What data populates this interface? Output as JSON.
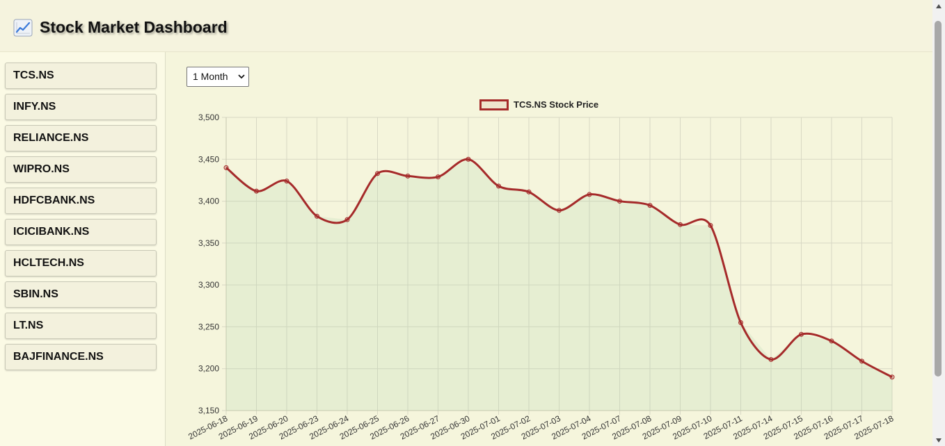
{
  "header": {
    "title": "Stock Market Dashboard",
    "logo_icon": "chart-increasing-icon"
  },
  "sidebar": {
    "items": [
      {
        "label": "TCS.NS"
      },
      {
        "label": "INFY.NS"
      },
      {
        "label": "RELIANCE.NS"
      },
      {
        "label": "WIPRO.NS"
      },
      {
        "label": "HDFCBANK.NS"
      },
      {
        "label": "ICICIBANK.NS"
      },
      {
        "label": "HCLTECH.NS"
      },
      {
        "label": "SBIN.NS"
      },
      {
        "label": "LT.NS"
      },
      {
        "label": "BAJFINANCE.NS"
      }
    ]
  },
  "controls": {
    "range_selected": "1 Month"
  },
  "colors": {
    "line": "#a52a2a",
    "fill": "#e6eedc",
    "background": "#f5f5dc"
  },
  "chart_data": {
    "type": "line",
    "x": [
      "2025-06-18",
      "2025-06-19",
      "2025-06-20",
      "2025-06-23",
      "2025-06-24",
      "2025-06-25",
      "2025-06-26",
      "2025-06-27",
      "2025-06-30",
      "2025-07-01",
      "2025-07-02",
      "2025-07-03",
      "2025-07-04",
      "2025-07-07",
      "2025-07-08",
      "2025-07-09",
      "2025-07-10",
      "2025-07-11",
      "2025-07-14",
      "2025-07-15",
      "2025-07-16",
      "2025-07-17",
      "2025-07-18"
    ],
    "series": [
      {
        "name": "TCS.NS Stock Price",
        "values": [
          3440,
          3412,
          3424,
          3382,
          3378,
          3433,
          3430,
          3429,
          3450,
          3418,
          3411,
          3389,
          3408,
          3400,
          3395,
          3372,
          3371,
          3255,
          3211,
          3241,
          3233,
          3209,
          3190
        ]
      }
    ],
    "ylim": [
      3150,
      3500
    ],
    "yticks": [
      3150,
      3200,
      3250,
      3300,
      3350,
      3400,
      3450,
      3500
    ],
    "ytick_labels": [
      "3,150",
      "3,200",
      "3,250",
      "3,300",
      "3,350",
      "3,400",
      "3,450",
      "3,500"
    ],
    "grid": true,
    "filled": true,
    "legend": "top-center"
  }
}
